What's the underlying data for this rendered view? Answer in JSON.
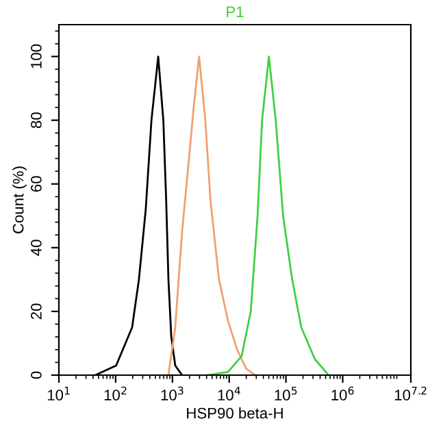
{
  "chart_data": {
    "type": "line",
    "title": "P1",
    "xlabel": "HSP90 beta-H",
    "ylabel": "Count (%)",
    "log": "x",
    "xlim": [
      10,
      15848932
    ],
    "ylim": [
      0,
      110
    ],
    "xticks": [
      {
        "value": 10,
        "label": "10$^{1}$"
      },
      {
        "value": 100,
        "label": "10$^{2}$"
      },
      {
        "value": 1000,
        "label": "10$^{3}$"
      },
      {
        "value": 10000,
        "label": "10$^{4}$"
      },
      {
        "value": 100000,
        "label": "10$^{5}$"
      },
      {
        "value": 1000000,
        "label": "10$^{6}$"
      },
      {
        "value": 15848932,
        "label": "10$^{7.2}$"
      }
    ],
    "yticks": [
      0,
      20,
      40,
      60,
      80,
      100
    ],
    "grid": false,
    "legend": false,
    "marker": "none",
    "line_style": "solid",
    "series": [
      {
        "color": "#000000",
        "x": [
          44,
          102,
          195,
          257,
          339,
          427,
          562,
          692,
          776,
          851,
          955,
          1122,
          1479
        ],
        "values": [
          0,
          3,
          15,
          30,
          52,
          80,
          100,
          80,
          55,
          30,
          12,
          3,
          0
        ]
      },
      {
        "color": "#f0a070",
        "x": [
          851,
          1122,
          1479,
          1778,
          2399,
          2951,
          3802,
          4677,
          6607,
          9550,
          13804,
          19953,
          28840
        ],
        "values": [
          0,
          15,
          45,
          60,
          85,
          100,
          80,
          55,
          30,
          17,
          8,
          2,
          0
        ]
      },
      {
        "color": "#40d040",
        "x": [
          4169,
          9550,
          16596,
          23988,
          31623,
          38019,
          50119,
          66069,
          89125,
          128825,
          186209,
          323594,
          562341
        ],
        "values": [
          0,
          1,
          6,
          20,
          50,
          80,
          100,
          80,
          50,
          30,
          15,
          5,
          0
        ]
      }
    ]
  }
}
